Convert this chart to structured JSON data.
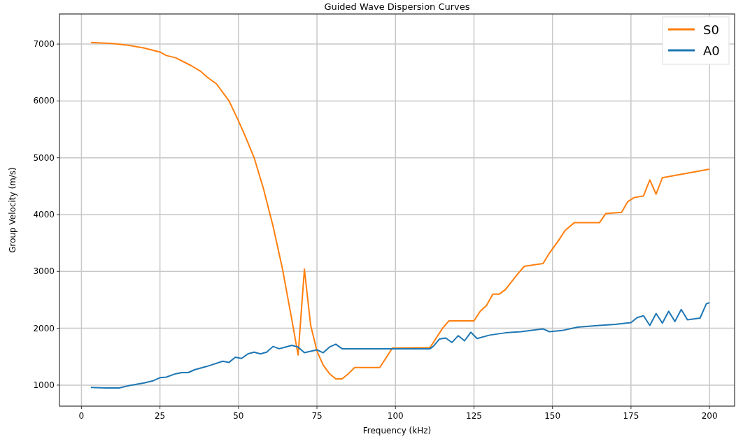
{
  "chart_data": {
    "type": "line",
    "title": "Guided Wave Dispersion Curves",
    "xlabel": "Frequency (kHz)",
    "ylabel": "Group Velocity (m/s)",
    "xlim": [
      -7,
      208
    ],
    "ylim": [
      630,
      7530
    ],
    "xticks": [
      0,
      25,
      50,
      75,
      100,
      125,
      150,
      175,
      200
    ],
    "yticks": [
      1000,
      2000,
      3000,
      4000,
      5000,
      6000,
      7000
    ],
    "grid": true,
    "legend": "top right",
    "series": [
      {
        "name": "S0",
        "color": "#ff7f0e",
        "x": [
          3,
          10,
          15,
          20,
          25,
          27,
          30,
          35,
          38,
          40,
          43,
          47,
          50,
          52,
          55,
          58,
          61,
          64,
          67,
          69,
          71,
          73,
          75,
          77,
          79,
          81,
          83,
          85,
          87,
          95,
          99,
          111,
          115,
          117,
          125,
          127,
          129,
          131,
          133,
          135,
          137,
          139,
          141,
          147,
          149,
          152,
          154,
          157,
          165,
          167,
          172,
          174,
          176,
          179,
          181,
          183,
          185,
          192,
          200
        ],
        "values": [
          7030,
          7010,
          6980,
          6930,
          6860,
          6800,
          6760,
          6620,
          6520,
          6420,
          6300,
          6000,
          5650,
          5400,
          5000,
          4450,
          3800,
          3050,
          2150,
          1530,
          3040,
          2050,
          1600,
          1350,
          1200,
          1110,
          1110,
          1200,
          1310,
          1310,
          1650,
          1660,
          2000,
          2130,
          2130,
          2300,
          2400,
          2600,
          2600,
          2680,
          2820,
          2960,
          3090,
          3140,
          3320,
          3550,
          3720,
          3860,
          3860,
          4020,
          4040,
          4230,
          4300,
          4330,
          4610,
          4360,
          4650,
          4720,
          4800
        ]
      },
      {
        "name": "A0",
        "color": "#1f77b4",
        "x": [
          3,
          8,
          12,
          15,
          20,
          23,
          25,
          27,
          30,
          32,
          34,
          36,
          40,
          45,
          47,
          49,
          51,
          53,
          55,
          57,
          59,
          61,
          63,
          65,
          67,
          69,
          71,
          75,
          77,
          79,
          81,
          83,
          111,
          112,
          114,
          116,
          118,
          120,
          122,
          124,
          126,
          130,
          135,
          140,
          147,
          149,
          153,
          158,
          165,
          170,
          175,
          177,
          179,
          181,
          183,
          185,
          187,
          189,
          191,
          193,
          197,
          199,
          200
        ],
        "values": [
          960,
          950,
          950,
          990,
          1040,
          1080,
          1130,
          1140,
          1200,
          1220,
          1220,
          1270,
          1330,
          1420,
          1400,
          1490,
          1470,
          1550,
          1580,
          1550,
          1580,
          1680,
          1640,
          1670,
          1700,
          1670,
          1570,
          1620,
          1570,
          1670,
          1720,
          1640,
          1640,
          1680,
          1810,
          1830,
          1750,
          1870,
          1780,
          1930,
          1820,
          1880,
          1920,
          1940,
          1990,
          1940,
          1960,
          2020,
          2050,
          2070,
          2100,
          2190,
          2220,
          2050,
          2260,
          2090,
          2300,
          2120,
          2330,
          2150,
          2180,
          2430,
          2450
        ]
      }
    ]
  }
}
